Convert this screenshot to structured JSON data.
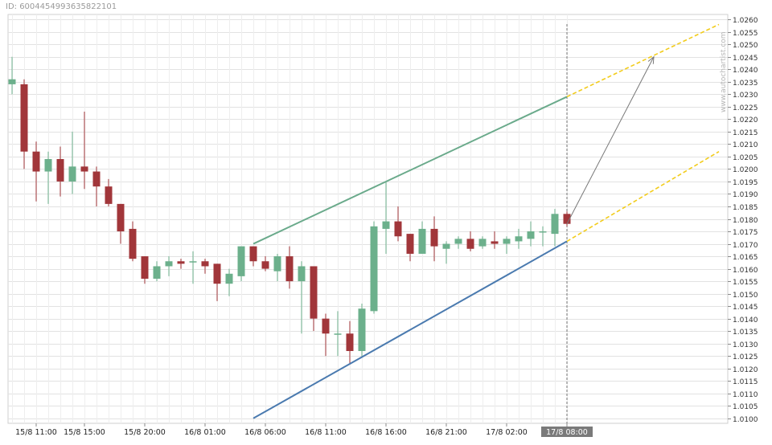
{
  "chart_id": "ID: 6004454993635822101",
  "watermark": "www.autochartist.com",
  "colors": {
    "bull": "#6cb08c",
    "bear": "#a1363a",
    "upper_line": "#6aaa8b",
    "lower_line": "#4a7aaf",
    "projection": "#f2cc1c",
    "arrow": "#777777",
    "grid": "#e2e2e2",
    "current_time_bg": "#7a7a7a"
  },
  "chart_data": {
    "type": "candlestick",
    "ylim": [
      1.0098,
      1.0262
    ],
    "y_ticks": [
      "1.0100",
      "1.0105",
      "1.0110",
      "1.0115",
      "1.0120",
      "1.0125",
      "1.0130",
      "1.0135",
      "1.0140",
      "1.0145",
      "1.0150",
      "1.0155",
      "1.0160",
      "1.0165",
      "1.0170",
      "1.0175",
      "1.0180",
      "1.0185",
      "1.0190",
      "1.0195",
      "1.0200",
      "1.0205",
      "1.0210",
      "1.0215",
      "1.0220",
      "1.0225",
      "1.0230",
      "1.0235",
      "1.0240",
      "1.0245",
      "1.0250",
      "1.0255",
      "1.0260"
    ],
    "x_ticks": [
      {
        "index": 2,
        "label": "15/8 11:00"
      },
      {
        "index": 6,
        "label": "15/8 15:00"
      },
      {
        "index": 11,
        "label": "15/8 20:00"
      },
      {
        "index": 16,
        "label": "16/8 01:00"
      },
      {
        "index": 21,
        "label": "16/8 06:00"
      },
      {
        "index": 26,
        "label": "16/8 11:00"
      },
      {
        "index": 31,
        "label": "16/8 16:00"
      },
      {
        "index": 36,
        "label": "16/8 21:00"
      },
      {
        "index": 41,
        "label": "17/8 02:00"
      },
      {
        "index": 46,
        "label": "17/8 08:00",
        "highlight": true
      }
    ],
    "candles": [
      {
        "o": 1.0234,
        "h": 1.0245,
        "l": 1.023,
        "c": 1.0236
      },
      {
        "o": 1.0234,
        "h": 1.0236,
        "l": 1.02,
        "c": 1.0207
      },
      {
        "o": 1.0207,
        "h": 1.0211,
        "l": 1.0187,
        "c": 1.0199
      },
      {
        "o": 1.0199,
        "h": 1.0207,
        "l": 1.0186,
        "c": 1.0204
      },
      {
        "o": 1.0204,
        "h": 1.0209,
        "l": 1.0189,
        "c": 1.0195
      },
      {
        "o": 1.0195,
        "h": 1.0215,
        "l": 1.019,
        "c": 1.0201
      },
      {
        "o": 1.0201,
        "h": 1.0223,
        "l": 1.0192,
        "c": 1.0199
      },
      {
        "o": 1.0199,
        "h": 1.0201,
        "l": 1.0185,
        "c": 1.0193
      },
      {
        "o": 1.0193,
        "h": 1.0196,
        "l": 1.0185,
        "c": 1.0186
      },
      {
        "o": 1.0186,
        "h": 1.0186,
        "l": 1.017,
        "c": 1.0175
      },
      {
        "o": 1.0176,
        "h": 1.0179,
        "l": 1.0163,
        "c": 1.0164
      },
      {
        "o": 1.0165,
        "h": 1.0165,
        "l": 1.0154,
        "c": 1.0156
      },
      {
        "o": 1.0156,
        "h": 1.0163,
        "l": 1.0155,
        "c": 1.0161
      },
      {
        "o": 1.0161,
        "h": 1.0165,
        "l": 1.0157,
        "c": 1.0163
      },
      {
        "o": 1.0163,
        "h": 1.0164,
        "l": 1.016,
        "c": 1.0162
      },
      {
        "o": 1.0163,
        "h": 1.0167,
        "l": 1.0154,
        "c": 1.0163
      },
      {
        "o": 1.0163,
        "h": 1.0164,
        "l": 1.0158,
        "c": 1.0161
      },
      {
        "o": 1.0162,
        "h": 1.0162,
        "l": 1.0147,
        "c": 1.0154
      },
      {
        "o": 1.0154,
        "h": 1.016,
        "l": 1.0149,
        "c": 1.0158
      },
      {
        "o": 1.0157,
        "h": 1.0169,
        "l": 1.0155,
        "c": 1.0169
      },
      {
        "o": 1.0169,
        "h": 1.0169,
        "l": 1.0161,
        "c": 1.0163
      },
      {
        "o": 1.0163,
        "h": 1.0165,
        "l": 1.0159,
        "c": 1.016
      },
      {
        "o": 1.0159,
        "h": 1.0166,
        "l": 1.0155,
        "c": 1.0165
      },
      {
        "o": 1.0165,
        "h": 1.0169,
        "l": 1.0152,
        "c": 1.0155
      },
      {
        "o": 1.0155,
        "h": 1.0163,
        "l": 1.0134,
        "c": 1.0161
      },
      {
        "o": 1.0161,
        "h": 1.0161,
        "l": 1.0135,
        "c": 1.014
      },
      {
        "o": 1.014,
        "h": 1.0142,
        "l": 1.0125,
        "c": 1.0134
      },
      {
        "o": 1.0134,
        "h": 1.0143,
        "l": 1.0125,
        "c": 1.0134
      },
      {
        "o": 1.0134,
        "h": 1.0139,
        "l": 1.0122,
        "c": 1.0127
      },
      {
        "o": 1.0127,
        "h": 1.0146,
        "l": 1.0125,
        "c": 1.0144
      },
      {
        "o": 1.0143,
        "h": 1.0179,
        "l": 1.0142,
        "c": 1.0177
      },
      {
        "o": 1.0176,
        "h": 1.0195,
        "l": 1.0166,
        "c": 1.0179
      },
      {
        "o": 1.0179,
        "h": 1.0185,
        "l": 1.0171,
        "c": 1.0173
      },
      {
        "o": 1.0174,
        "h": 1.0174,
        "l": 1.0163,
        "c": 1.0166
      },
      {
        "o": 1.0166,
        "h": 1.0179,
        "l": 1.0166,
        "c": 1.0176
      },
      {
        "o": 1.0176,
        "h": 1.0181,
        "l": 1.0163,
        "c": 1.0169
      },
      {
        "o": 1.0168,
        "h": 1.0171,
        "l": 1.0162,
        "c": 1.017
      },
      {
        "o": 1.017,
        "h": 1.0173,
        "l": 1.0168,
        "c": 1.0172
      },
      {
        "o": 1.0172,
        "h": 1.0175,
        "l": 1.0167,
        "c": 1.0168
      },
      {
        "o": 1.0169,
        "h": 1.0173,
        "l": 1.0168,
        "c": 1.0172
      },
      {
        "o": 1.0171,
        "h": 1.0175,
        "l": 1.0168,
        "c": 1.017
      },
      {
        "o": 1.017,
        "h": 1.0173,
        "l": 1.0166,
        "c": 1.0172
      },
      {
        "o": 1.0171,
        "h": 1.0176,
        "l": 1.0168,
        "c": 1.0173
      },
      {
        "o": 1.0172,
        "h": 1.0179,
        "l": 1.0169,
        "c": 1.0175
      },
      {
        "o": 1.0175,
        "h": 1.0177,
        "l": 1.0169,
        "c": 1.0175
      },
      {
        "o": 1.0174,
        "h": 1.0184,
        "l": 1.0169,
        "c": 1.0182
      },
      {
        "o": 1.0182,
        "h": 1.0183,
        "l": 1.0177,
        "c": 1.0178
      }
    ],
    "trendlines": [
      {
        "role": "upper",
        "from": {
          "i": 20,
          "y": 1.017
        },
        "to": {
          "i": 46,
          "y": 1.0229
        }
      },
      {
        "role": "lower",
        "from": {
          "i": 20,
          "y": 1.01
        },
        "to": {
          "i": 46,
          "y": 1.0171
        }
      }
    ],
    "projections": [
      {
        "role": "upper",
        "from": {
          "i": 46,
          "y": 1.0229
        },
        "to": {
          "i": 58.6,
          "y": 1.0258
        }
      },
      {
        "role": "lower",
        "from": {
          "i": 46,
          "y": 1.0171
        },
        "to": {
          "i": 58.6,
          "y": 1.0207
        }
      }
    ],
    "arrow": {
      "from": {
        "i": 46,
        "y": 1.0178
      },
      "to": {
        "i": 53.2,
        "y": 1.0245
      }
    },
    "current_index": 46
  }
}
